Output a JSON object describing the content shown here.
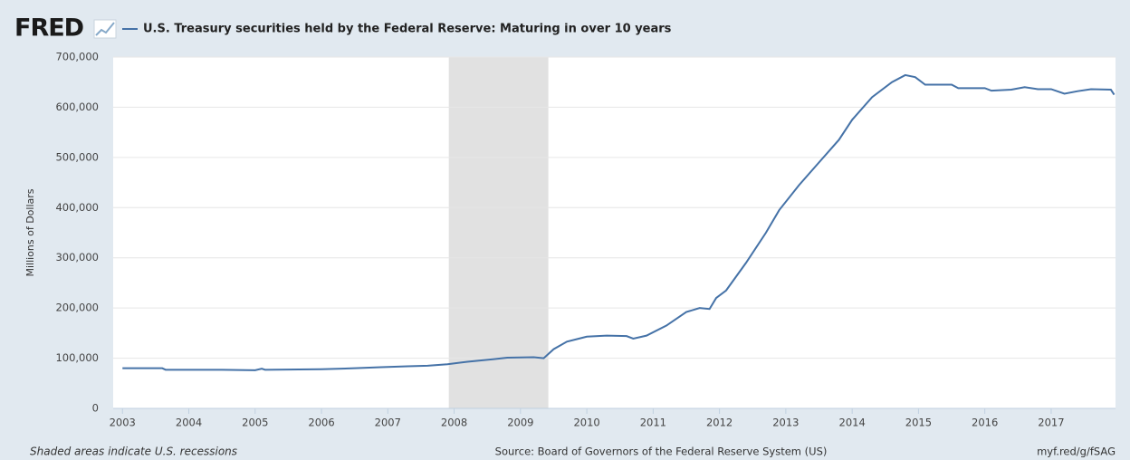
{
  "chart_data": {
    "type": "line",
    "logo": "FRED",
    "title": "U.S. Treasury securities held by the Federal Reserve: Maturing in over 10 years",
    "y_label": "Millions of Dollars",
    "note": "Shaded areas indicate U.S. recessions",
    "source": "Source: Board of Governors of the Federal Reserve System (US)",
    "link": "myf.red/g/fSAG",
    "recessions": [
      [
        2007.92,
        2009.42
      ]
    ],
    "recession_color": "#e1e1e1",
    "x": [
      2003.0,
      2003.6,
      2003.65,
      2004.5,
      2005.0,
      2005.1,
      2005.15,
      2006.0,
      2006.5,
      2006.9,
      2007.3,
      2007.6,
      2007.9,
      2008.2,
      2008.6,
      2008.8,
      2009.2,
      2009.35,
      2009.5,
      2009.7,
      2010.0,
      2010.3,
      2010.6,
      2010.7,
      2010.9,
      2011.2,
      2011.5,
      2011.7,
      2011.85,
      2011.95,
      2012.1,
      2012.4,
      2012.7,
      2012.9,
      2013.2,
      2013.5,
      2013.8,
      2014.0,
      2014.3,
      2014.6,
      2014.8,
      2014.95,
      2015.1,
      2015.5,
      2015.6,
      2016.0,
      2016.1,
      2016.4,
      2016.6,
      2016.8,
      2017.0,
      2017.2,
      2017.4,
      2017.6,
      2017.9,
      2017.95
    ],
    "series": [
      {
        "name": "U.S. Treasury securities held by the Federal Reserve: Maturing in over 10 years",
        "color": "#4572a7",
        "values": [
          80000,
          80000,
          77000,
          77000,
          76000,
          79000,
          77000,
          78000,
          80000,
          82000,
          84000,
          85000,
          88000,
          93000,
          98000,
          101000,
          102000,
          100000,
          118000,
          133000,
          143000,
          145000,
          144000,
          139000,
          145000,
          165000,
          192000,
          200000,
          198000,
          220000,
          235000,
          290000,
          350000,
          395000,
          445000,
          490000,
          535000,
          575000,
          620000,
          650000,
          664000,
          660000,
          645000,
          645000,
          638000,
          638000,
          633000,
          635000,
          640000,
          636000,
          636000,
          627000,
          632000,
          636000,
          635000,
          625000
        ]
      }
    ],
    "xlim": [
      2002.86,
      2017.97
    ],
    "xticks": [
      2003,
      2004,
      2005,
      2006,
      2007,
      2008,
      2009,
      2010,
      2011,
      2012,
      2013,
      2014,
      2015,
      2016,
      2017
    ],
    "ylim": [
      0,
      700000
    ],
    "yticks": [
      0,
      {
        "value": 100000,
        "label": "100,000"
      },
      {
        "value": 200000,
        "label": "200,000"
      },
      {
        "value": 300000,
        "label": "300,000"
      },
      {
        "value": 400000,
        "label": "400,000"
      },
      {
        "value": 500000,
        "label": "500,000"
      },
      {
        "value": 600000,
        "label": "600,000"
      },
      {
        "value": 700000,
        "label": "700,000"
      }
    ],
    "grid": true
  }
}
